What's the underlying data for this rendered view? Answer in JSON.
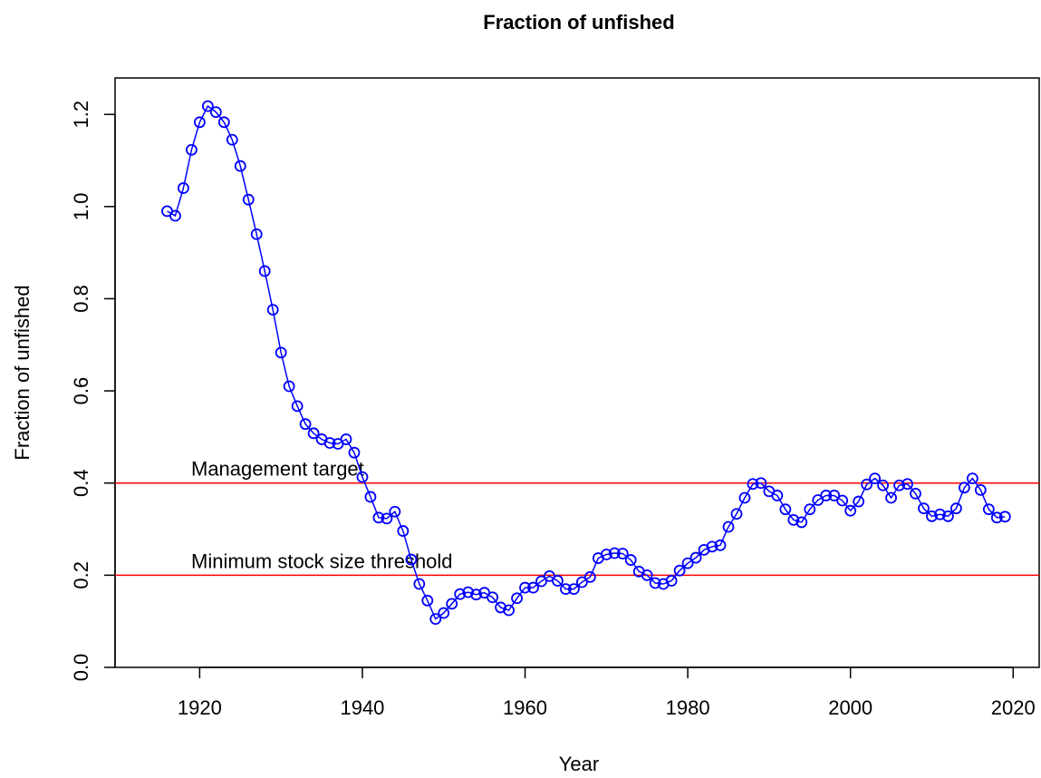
{
  "chart_data": {
    "type": "line",
    "title": "Fraction of unfished",
    "x_label": "Year",
    "y_label": "Fraction of unfished",
    "x": [
      1916,
      1917,
      1918,
      1919,
      1920,
      1921,
      1922,
      1923,
      1924,
      1925,
      1926,
      1927,
      1928,
      1929,
      1930,
      1931,
      1932,
      1933,
      1934,
      1935,
      1936,
      1937,
      1938,
      1939,
      1940,
      1941,
      1942,
      1943,
      1944,
      1945,
      1946,
      1947,
      1948,
      1949,
      1950,
      1951,
      1952,
      1953,
      1954,
      1955,
      1956,
      1957,
      1958,
      1959,
      1960,
      1961,
      1962,
      1963,
      1964,
      1965,
      1966,
      1967,
      1968,
      1969,
      1970,
      1971,
      1972,
      1973,
      1974,
      1975,
      1976,
      1977,
      1978,
      1979,
      1980,
      1981,
      1982,
      1983,
      1984,
      1985,
      1986,
      1987,
      1988,
      1989,
      1990,
      1991,
      1992,
      1993,
      1994,
      1995,
      1996,
      1997,
      1998,
      1999,
      2000,
      2001,
      2002,
      2003,
      2004,
      2005,
      2006,
      2007,
      2008,
      2009,
      2010,
      2011,
      2012,
      2013,
      2014,
      2015,
      2016,
      2017,
      2018,
      2019
    ],
    "values": [
      0.99,
      0.98,
      1.04,
      1.123,
      1.183,
      1.218,
      1.205,
      1.183,
      1.145,
      1.088,
      1.015,
      0.94,
      0.86,
      0.776,
      0.683,
      0.61,
      0.567,
      0.528,
      0.508,
      0.495,
      0.487,
      0.485,
      0.495,
      0.466,
      0.413,
      0.37,
      0.325,
      0.323,
      0.338,
      0.296,
      0.234,
      0.181,
      0.145,
      0.105,
      0.118,
      0.138,
      0.159,
      0.163,
      0.158,
      0.162,
      0.152,
      0.13,
      0.124,
      0.15,
      0.173,
      0.173,
      0.187,
      0.198,
      0.188,
      0.17,
      0.17,
      0.185,
      0.196,
      0.237,
      0.245,
      0.248,
      0.247,
      0.233,
      0.208,
      0.2,
      0.183,
      0.181,
      0.188,
      0.21,
      0.226,
      0.238,
      0.255,
      0.262,
      0.265,
      0.305,
      0.333,
      0.368,
      0.398,
      0.4,
      0.382,
      0.373,
      0.343,
      0.32,
      0.315,
      0.343,
      0.363,
      0.373,
      0.373,
      0.362,
      0.34,
      0.36,
      0.397,
      0.41,
      0.395,
      0.368,
      0.395,
      0.398,
      0.377,
      0.345,
      0.328,
      0.332,
      0.328,
      0.345,
      0.39,
      0.41,
      0.385,
      0.343,
      0.325,
      0.327
    ],
    "color": "#0000ff",
    "xlim": [
      1909.6,
      2023.2
    ],
    "xticks": [
      1920,
      1940,
      1960,
      1980,
      2000,
      2020
    ],
    "ylim": [
      0,
      1.279
    ],
    "yticks": [
      {
        "value": 0,
        "label": "0.0"
      },
      0.2,
      0.4,
      0.6,
      0.8,
      {
        "value": 1,
        "label": "1.0"
      },
      1.2
    ],
    "reference_lines": [
      {
        "value": 0.4,
        "label": "Management target",
        "color": "#ff0000"
      },
      {
        "value": 0.2,
        "label": "Minimum stock size threshold",
        "color": "#ff0000"
      }
    ]
  }
}
